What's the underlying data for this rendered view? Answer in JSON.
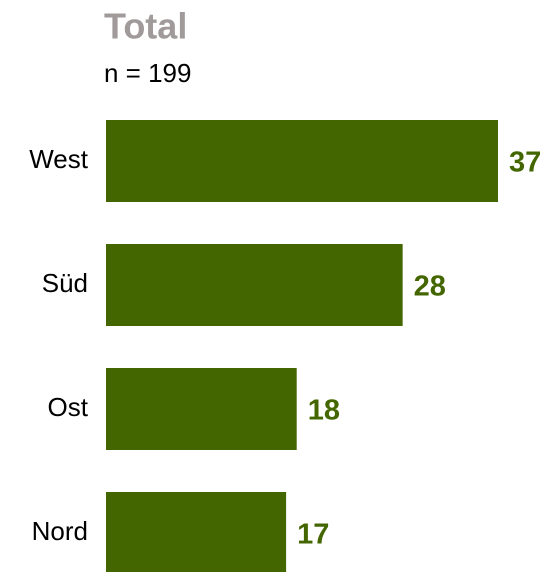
{
  "chart_data": {
    "type": "hbar",
    "title": "Total",
    "subtitle": "n = 199",
    "categories": [
      "West",
      "Süd",
      "Ost",
      "Nord"
    ],
    "values": [
      37,
      28,
      18,
      17
    ],
    "color": "#446600"
  }
}
